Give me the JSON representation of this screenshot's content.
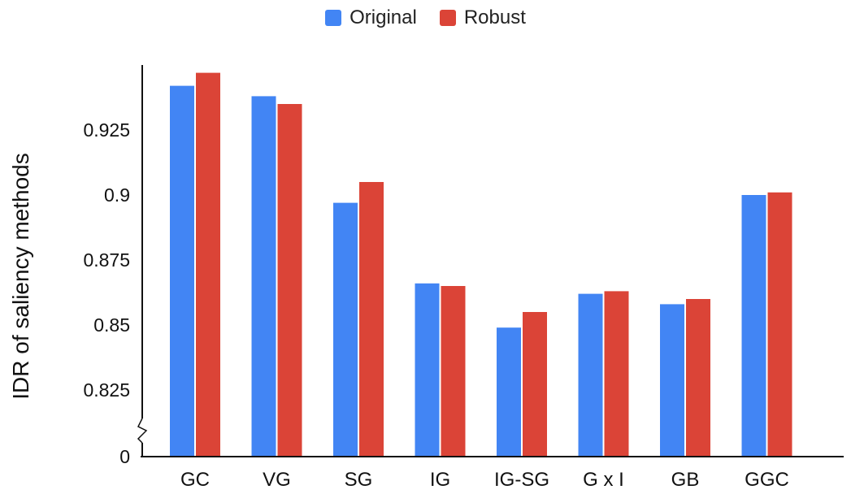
{
  "chart_data": {
    "type": "bar",
    "title": "",
    "xlabel": "",
    "ylabel": "IDR of saliency methods",
    "categories": [
      "GC",
      "VG",
      "SG",
      "IG",
      "IG-SG",
      "G x I",
      "GB",
      "GGC"
    ],
    "series": [
      {
        "name": "Original",
        "color": "#4285f4",
        "values": [
          0.942,
          0.938,
          0.897,
          0.866,
          0.849,
          0.862,
          0.858,
          0.9
        ]
      },
      {
        "name": "Robust",
        "color": "#db4437",
        "values": [
          0.947,
          0.935,
          0.905,
          0.865,
          0.855,
          0.863,
          0.86,
          0.901
        ]
      }
    ],
    "y_ticks": [
      "0.925",
      "0.9",
      "0.875",
      "0.85",
      "0.825"
    ],
    "y_tick_values": [
      0.925,
      0.9,
      0.875,
      0.85,
      0.825
    ],
    "y_axis_break": true,
    "y_break_bottom_label": "0",
    "ylim": [
      0.8,
      0.95
    ],
    "grid": false,
    "legend_position": "top-center"
  }
}
